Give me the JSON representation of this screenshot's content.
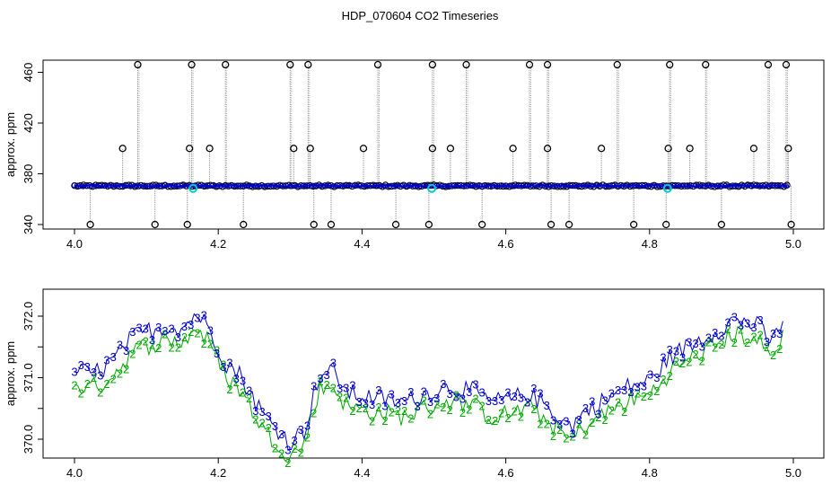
{
  "title": "HDP_070604  CO2 Timeseries",
  "colors": {
    "point": "#000000",
    "line": "#888888",
    "blue": "#0000cc",
    "cyan": "#00cccc",
    "green": "#00aa00"
  },
  "chart_data": [
    {
      "type": "scatter",
      "ylabel": "approx. ppm",
      "xlim": [
        4.0,
        5.0
      ],
      "ylim": [
        338,
        472
      ],
      "x_ticks": [
        "4.0",
        "4.2",
        "4.4",
        "4.6",
        "4.8",
        "5.0"
      ],
      "y_ticks": [
        "340",
        "380",
        "420",
        "460"
      ],
      "baseline_ppm": 370.5,
      "spikes_high": [
        4.088,
        4.163,
        4.21,
        4.3,
        4.325,
        4.422,
        4.498,
        4.545,
        4.633,
        4.658,
        4.755,
        4.828,
        4.878,
        4.965,
        4.99
      ],
      "spikes_400": [
        4.067,
        4.16,
        4.188,
        4.305,
        4.328,
        4.402,
        4.498,
        4.523,
        4.61,
        4.658,
        4.733,
        4.826,
        4.856,
        4.945,
        4.993
      ],
      "spikes_low": [
        4.022,
        4.112,
        4.157,
        4.235,
        4.333,
        4.357,
        4.447,
        4.493,
        4.567,
        4.663,
        4.688,
        4.778,
        4.823,
        4.9,
        4.997
      ],
      "cyan_markers": [
        4.165,
        4.497,
        4.825
      ]
    },
    {
      "type": "line",
      "ylabel": "approx. ppm",
      "xlim": [
        4.0,
        5.0
      ],
      "ylim": [
        369.55,
        372.6
      ],
      "x_ticks": [
        "4.0",
        "4.2",
        "4.4",
        "4.6",
        "4.8",
        "5.0"
      ],
      "y_ticks": [
        "370.0",
        "371.0",
        "372.0"
      ],
      "series": [
        {
          "name": "3",
          "color": "#0000cc"
        },
        {
          "name": "2",
          "color": "#00aa00"
        }
      ],
      "keypoints": [
        [
          4.0,
          371.1
        ],
        [
          4.02,
          371.0
        ],
        [
          4.04,
          371.1
        ],
        [
          4.06,
          371.3
        ],
        [
          4.08,
          371.6
        ],
        [
          4.1,
          371.7
        ],
        [
          4.13,
          371.8
        ],
        [
          4.15,
          371.75
        ],
        [
          4.17,
          372.0
        ],
        [
          4.19,
          371.7
        ],
        [
          4.21,
          371.2
        ],
        [
          4.23,
          371.0
        ],
        [
          4.25,
          370.6
        ],
        [
          4.265,
          370.3
        ],
        [
          4.28,
          370.15
        ],
        [
          4.3,
          369.9
        ],
        [
          4.32,
          370.1
        ],
        [
          4.34,
          371.0
        ],
        [
          4.36,
          371.05
        ],
        [
          4.38,
          370.7
        ],
        [
          4.4,
          370.65
        ],
        [
          4.43,
          370.6
        ],
        [
          4.46,
          370.55
        ],
        [
          4.49,
          370.7
        ],
        [
          4.52,
          370.8
        ],
        [
          4.55,
          370.75
        ],
        [
          4.58,
          370.55
        ],
        [
          4.61,
          370.6
        ],
        [
          4.63,
          370.7
        ],
        [
          4.65,
          370.55
        ],
        [
          4.67,
          370.35
        ],
        [
          4.69,
          370.15
        ],
        [
          4.71,
          370.4
        ],
        [
          4.74,
          370.6
        ],
        [
          4.77,
          370.8
        ],
        [
          4.8,
          370.9
        ],
        [
          4.83,
          371.3
        ],
        [
          4.86,
          371.5
        ],
        [
          4.89,
          371.7
        ],
        [
          4.92,
          371.9
        ],
        [
          4.95,
          371.8
        ],
        [
          4.97,
          371.5
        ],
        [
          4.99,
          372.0
        ]
      ]
    }
  ]
}
